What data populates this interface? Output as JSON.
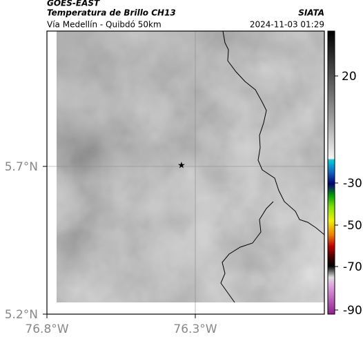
{
  "header": {
    "satellite": "GOES-EAST",
    "product": "Temperatura de Brillo CH13",
    "source": "SIATA",
    "route": "Vía Medellín - Quibdó 50km",
    "datetime": "2024-11-03 01:29"
  },
  "map": {
    "lat_labels": [
      "5.7°N",
      "5.2°N"
    ],
    "lon_labels": [
      "76.8°W",
      "76.3°W"
    ]
  },
  "colorbar": {
    "tick_labels": [
      "20",
      "-30",
      "-50",
      "-70",
      "-90"
    ]
  }
}
